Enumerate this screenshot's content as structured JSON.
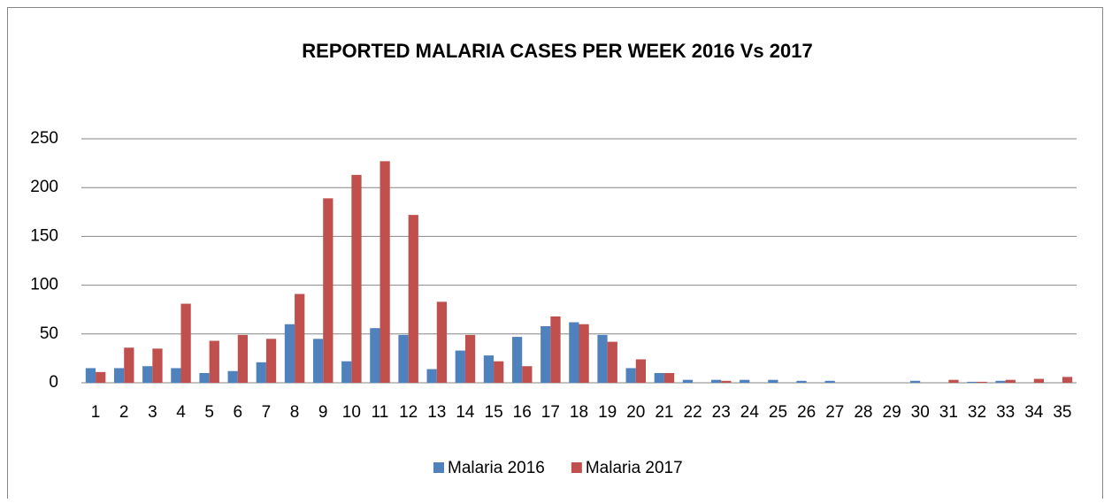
{
  "chart_data": {
    "type": "bar",
    "title": "REPORTED MALARIA CASES PER WEEK 2016 Vs 2017",
    "categories": [
      "1",
      "2",
      "3",
      "4",
      "5",
      "6",
      "7",
      "8",
      "9",
      "10",
      "11",
      "12",
      "13",
      "14",
      "15",
      "16",
      "17",
      "18",
      "19",
      "20",
      "21",
      "22",
      "23",
      "24",
      "25",
      "26",
      "27",
      "28",
      "29",
      "30",
      "31",
      "32",
      "33",
      "34",
      "35"
    ],
    "series": [
      {
        "name": "Malaria 2016",
        "color": "#4f81bd",
        "values": [
          15,
          15,
          17,
          15,
          10,
          12,
          21,
          60,
          45,
          22,
          56,
          49,
          14,
          33,
          28,
          47,
          58,
          62,
          49,
          15,
          10,
          3,
          3,
          3,
          3,
          2,
          2,
          0,
          0,
          2,
          0,
          1,
          2,
          0,
          0
        ]
      },
      {
        "name": "Malaria 2017",
        "color": "#c0504d",
        "values": [
          11,
          36,
          35,
          81,
          43,
          49,
          45,
          91,
          189,
          213,
          227,
          172,
          83,
          49,
          22,
          17,
          68,
          60,
          42,
          24,
          10,
          0,
          2,
          0,
          0,
          0,
          0,
          0,
          0,
          0,
          3,
          1,
          3,
          4,
          6
        ]
      }
    ],
    "ylim": [
      0,
      250
    ],
    "yticks": [
      0,
      50,
      100,
      150,
      200,
      250
    ],
    "grid": true,
    "legend": "bottom"
  }
}
